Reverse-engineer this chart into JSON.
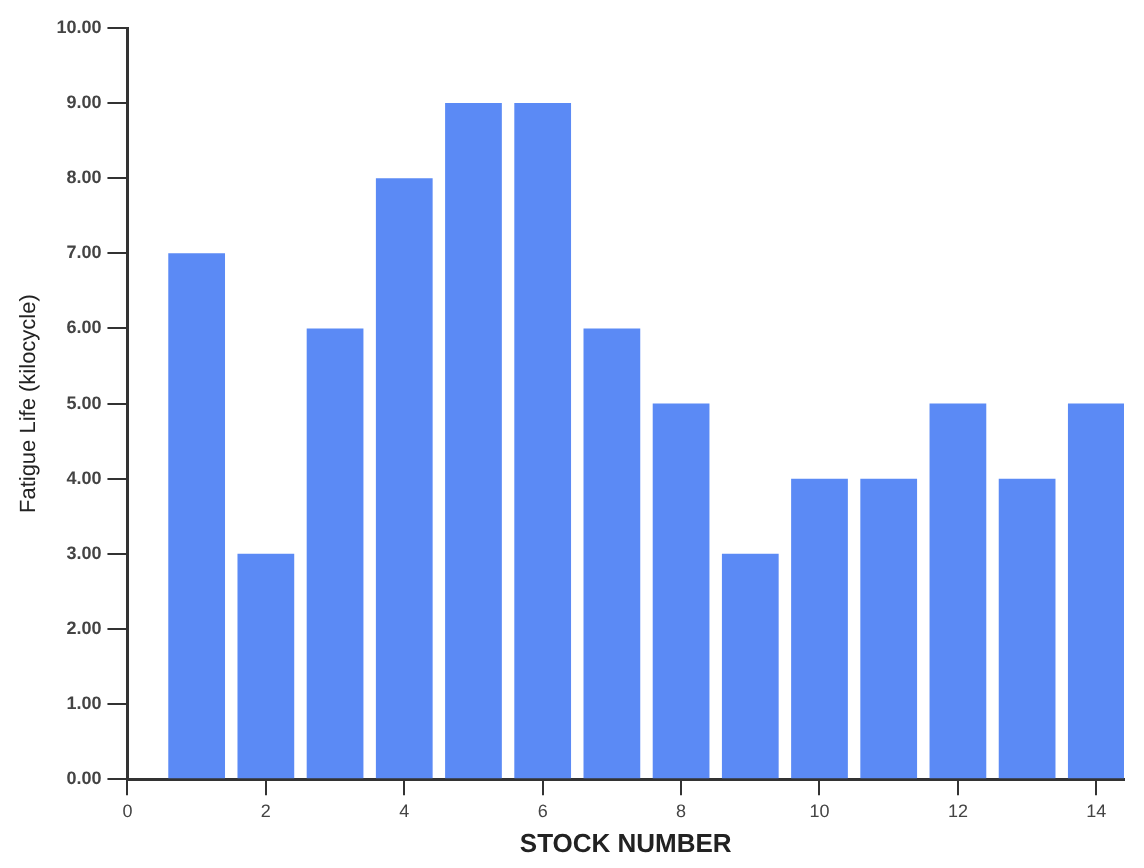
{
  "chart_data": {
    "type": "bar",
    "xlabel": "STOCK NUMBER",
    "ylabel": "Fatigue Life (kilocycle)",
    "x": [
      1,
      2,
      3,
      4,
      5,
      6,
      7,
      8,
      9,
      10,
      11,
      12,
      13,
      14
    ],
    "values": [
      7,
      3,
      6,
      8,
      9,
      9,
      6,
      5,
      3,
      4,
      4,
      5,
      4,
      5
    ],
    "color": "#5b8af5",
    "xlim": [
      0,
      14.4
    ],
    "xticks": [
      0,
      2,
      4,
      6,
      8,
      10,
      12,
      14
    ],
    "ylim": [
      0,
      10
    ],
    "yticks": [
      {
        "value": 0,
        "label": "0.00"
      },
      {
        "value": 1,
        "label": "1.00"
      },
      {
        "value": 2,
        "label": "2.00"
      },
      {
        "value": 3,
        "label": "3.00"
      },
      {
        "value": 4,
        "label": "4.00"
      },
      {
        "value": 5,
        "label": "5.00"
      },
      {
        "value": 6,
        "label": "6.00"
      },
      {
        "value": 7,
        "label": "7.00"
      },
      {
        "value": 8,
        "label": "8.00"
      },
      {
        "value": 9,
        "label": "9.00"
      },
      {
        "value": 10,
        "label": "10.00"
      }
    ],
    "grid": false,
    "legend": false
  }
}
